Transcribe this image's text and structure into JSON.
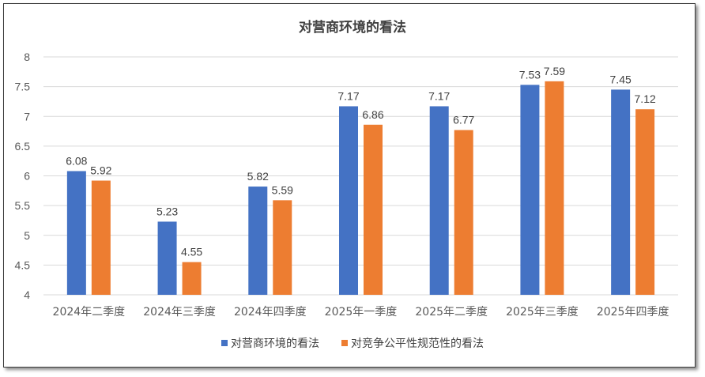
{
  "chart_data": {
    "type": "bar",
    "title": "对营商环境的看法",
    "categories": [
      "2024年二季度",
      "2024年三季度",
      "2024年四季度",
      "2025年一季度",
      "2025年二季度",
      "2025年三季度",
      "2025年四季度"
    ],
    "series": [
      {
        "name": "对营商环境的看法",
        "color": "#4472C4",
        "values": [
          6.08,
          5.23,
          5.82,
          7.17,
          7.17,
          7.53,
          7.45
        ]
      },
      {
        "name": "对竞争公平性规范性的看法",
        "color": "#ED7D31",
        "values": [
          5.92,
          4.55,
          5.59,
          6.86,
          6.77,
          7.59,
          7.12
        ]
      }
    ],
    "ylim": [
      4,
      8
    ],
    "yticks": [
      "4",
      "4.5",
      "5",
      "5.5",
      "6",
      "6.5",
      "7",
      "7.5",
      "8"
    ],
    "grid": true,
    "legend": "bottom",
    "xlabel": "",
    "ylabel": ""
  }
}
